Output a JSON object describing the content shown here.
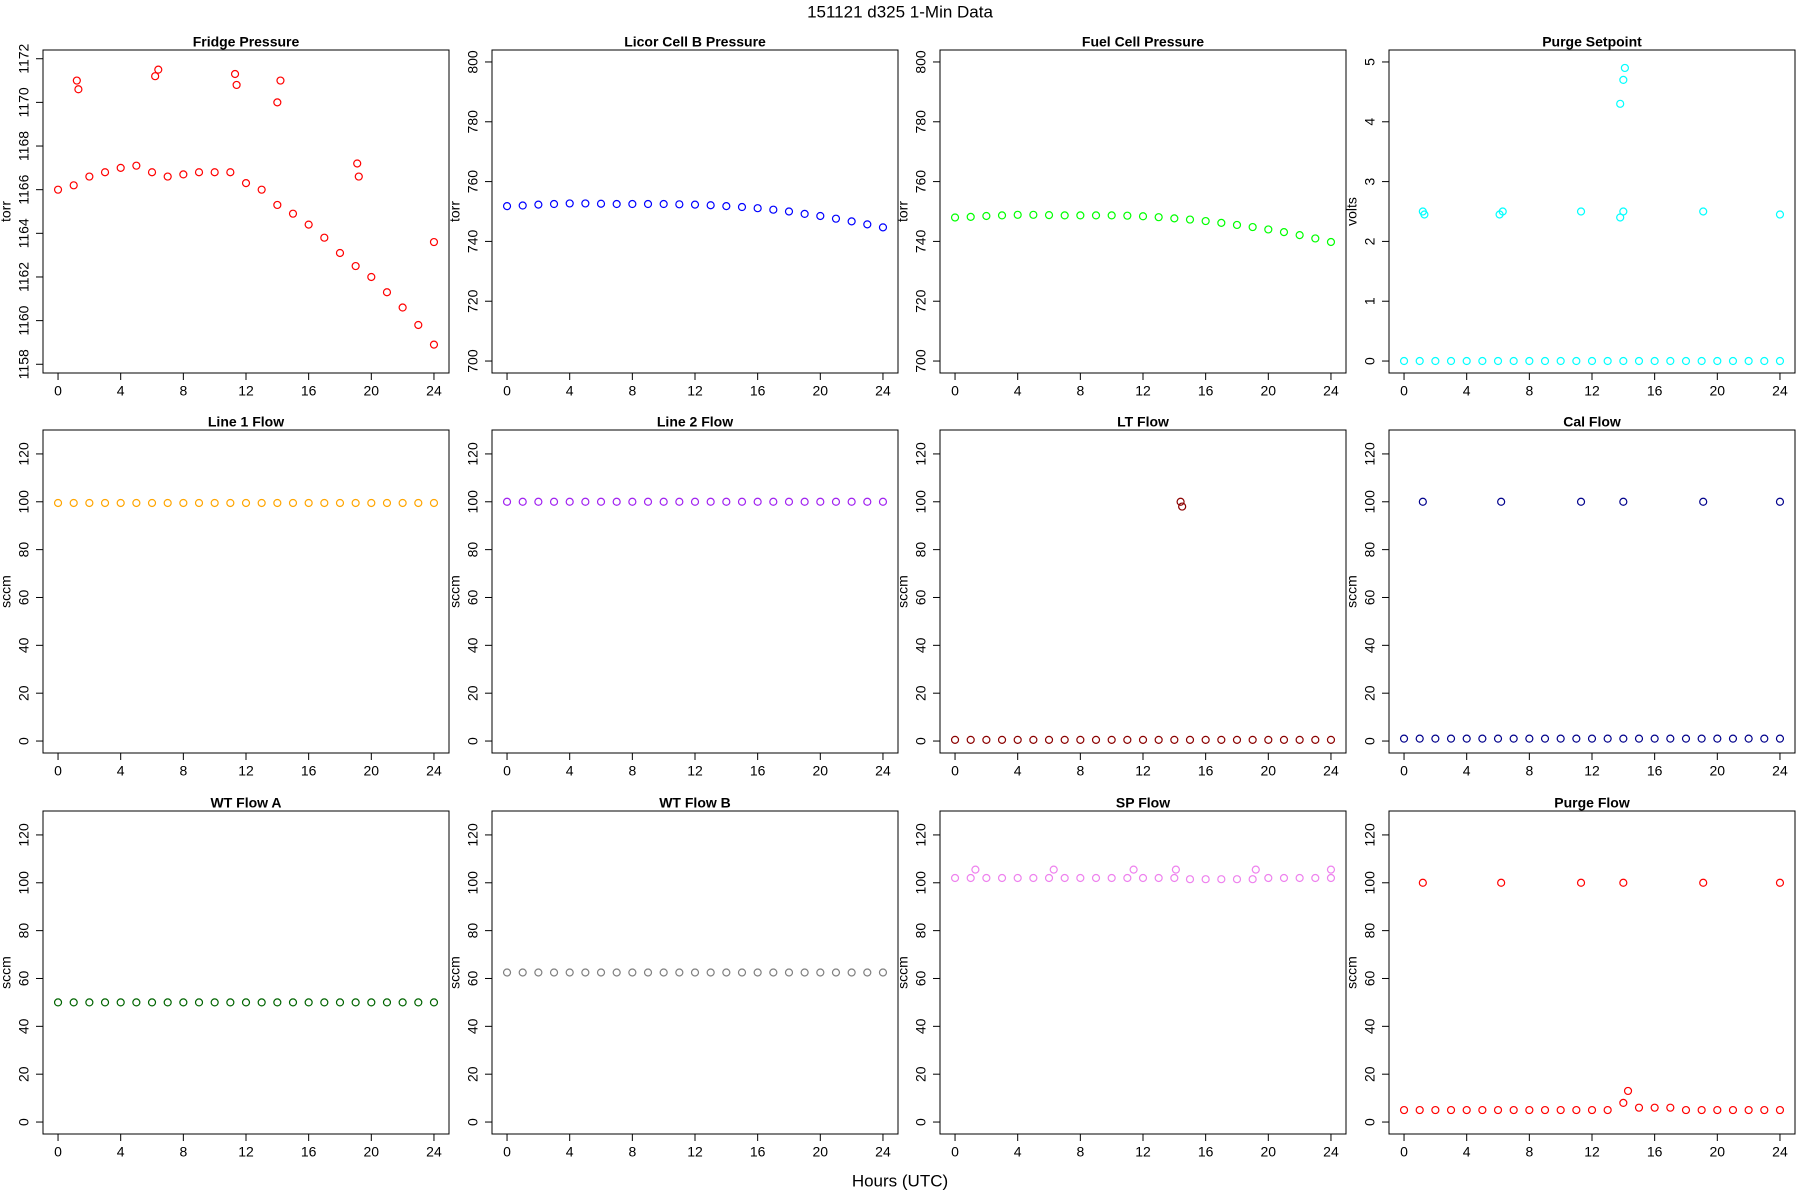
{
  "title": "151121   d325   1-Min Data",
  "x_label": "Hours (UTC)",
  "chart_data": [
    {
      "type": "scatter",
      "title": "Fridge Pressure",
      "ylabel": "torr",
      "color": "#ff0000",
      "x": [
        0,
        1,
        2,
        3,
        4,
        5,
        6,
        7,
        8,
        9,
        10,
        11,
        12,
        13,
        14,
        15,
        16,
        17,
        18,
        19,
        20,
        21,
        22,
        23,
        24,
        1.2,
        1.3,
        6.2,
        6.4,
        11.3,
        11.4,
        14,
        14.2,
        19.1,
        19.2,
        24
      ],
      "values": [
        1166,
        1166.2,
        1166.6,
        1166.8,
        1167,
        1167.1,
        1166.8,
        1166.6,
        1166.7,
        1166.8,
        1166.8,
        1166.8,
        1166.3,
        1166,
        1165.3,
        1164.9,
        1164.4,
        1163.8,
        1163.1,
        1162.5,
        1162,
        1161.3,
        1160.6,
        1159.8,
        1158.9,
        1171,
        1170.6,
        1171.2,
        1171.5,
        1171.3,
        1170.8,
        1170,
        1171,
        1167.2,
        1166.6,
        1163.6
      ],
      "xlim": [
        -0.96,
        24.96
      ],
      "xticks": [
        0,
        4,
        8,
        12,
        16,
        20,
        24
      ],
      "ylim": [
        1157.6,
        1172.4
      ],
      "yticks": [
        1158,
        1160,
        1162,
        1164,
        1166,
        1168,
        1170,
        1172
      ]
    },
    {
      "type": "scatter",
      "title": "Licor Cell B Pressure",
      "ylabel": "torr",
      "color": "#0000ff",
      "x": [
        0,
        1,
        2,
        3,
        4,
        5,
        6,
        7,
        8,
        9,
        10,
        11,
        12,
        13,
        14,
        15,
        16,
        17,
        18,
        19,
        20,
        21,
        22,
        23,
        24
      ],
      "values": [
        751.8,
        752,
        752.3,
        752.5,
        752.7,
        752.7,
        752.6,
        752.5,
        752.5,
        752.5,
        752.5,
        752.4,
        752.3,
        752.1,
        751.8,
        751.5,
        751.1,
        750.6,
        750,
        749.2,
        748.5,
        747.6,
        746.7,
        745.7,
        744.7
      ],
      "xlim": [
        -0.96,
        24.96
      ],
      "xticks": [
        0,
        4,
        8,
        12,
        16,
        20,
        24
      ],
      "ylim": [
        696,
        804
      ],
      "yticks": [
        700,
        720,
        740,
        760,
        780,
        800
      ]
    },
    {
      "type": "scatter",
      "title": "Fuel Cell Pressure",
      "ylabel": "torr",
      "color": "#00ff00",
      "x": [
        0,
        1,
        2,
        3,
        4,
        5,
        6,
        7,
        8,
        9,
        10,
        11,
        12,
        13,
        14,
        15,
        16,
        17,
        18,
        19,
        20,
        21,
        22,
        23,
        24
      ],
      "values": [
        748,
        748.2,
        748.5,
        748.7,
        748.9,
        748.9,
        748.8,
        748.7,
        748.7,
        748.7,
        748.7,
        748.6,
        748.4,
        748.1,
        747.7,
        747.3,
        746.8,
        746.2,
        745.5,
        744.8,
        744,
        743.1,
        742.1,
        741,
        739.8
      ],
      "xlim": [
        -0.96,
        24.96
      ],
      "xticks": [
        0,
        4,
        8,
        12,
        16,
        20,
        24
      ],
      "ylim": [
        696,
        804
      ],
      "yticks": [
        700,
        720,
        740,
        760,
        780,
        800
      ]
    },
    {
      "type": "scatter",
      "title": "Purge Setpoint",
      "ylabel": "volts",
      "color": "#00ffff",
      "x": [
        0,
        1,
        2,
        3,
        4,
        5,
        6,
        7,
        8,
        9,
        10,
        11,
        12,
        13,
        14,
        15,
        16,
        17,
        18,
        19,
        20,
        21,
        22,
        23,
        24,
        1.2,
        1.3,
        6.1,
        6.3,
        11.3,
        13.8,
        14,
        13.8,
        14,
        14.1,
        19.1,
        24
      ],
      "values": [
        0,
        0,
        0,
        0,
        0,
        0,
        0,
        0,
        0,
        0,
        0,
        0,
        0,
        0,
        0,
        0,
        0,
        0,
        0,
        0,
        0,
        0,
        0,
        0,
        0,
        2.5,
        2.45,
        2.45,
        2.5,
        2.5,
        2.4,
        2.5,
        4.3,
        4.7,
        4.9,
        2.5,
        2.45
      ],
      "xlim": [
        -0.96,
        24.96
      ],
      "xticks": [
        0,
        4,
        8,
        12,
        16,
        20,
        24
      ],
      "ylim": [
        -0.2,
        5.2
      ],
      "yticks": [
        0,
        1,
        2,
        3,
        4,
        5
      ]
    },
    {
      "type": "scatter",
      "title": "Line 1 Flow",
      "ylabel": "sccm",
      "color": "#ffa500",
      "x": [
        0,
        1,
        2,
        3,
        4,
        5,
        6,
        7,
        8,
        9,
        10,
        11,
        12,
        13,
        14,
        15,
        16,
        17,
        18,
        19,
        20,
        21,
        22,
        23,
        24
      ],
      "values": [
        99.5,
        99.5,
        99.5,
        99.5,
        99.5,
        99.5,
        99.5,
        99.5,
        99.5,
        99.5,
        99.5,
        99.5,
        99.5,
        99.5,
        99.5,
        99.5,
        99.5,
        99.5,
        99.5,
        99.5,
        99.5,
        99.5,
        99.5,
        99.5,
        99.5
      ],
      "xlim": [
        -0.96,
        24.96
      ],
      "xticks": [
        0,
        4,
        8,
        12,
        16,
        20,
        24
      ],
      "ylim": [
        -5,
        130
      ],
      "yticks": [
        0,
        20,
        40,
        60,
        80,
        100,
        120
      ]
    },
    {
      "type": "scatter",
      "title": "Line 2 Flow",
      "ylabel": "sccm",
      "color": "#a020f0",
      "x": [
        0,
        1,
        2,
        3,
        4,
        5,
        6,
        7,
        8,
        9,
        10,
        11,
        12,
        13,
        14,
        15,
        16,
        17,
        18,
        19,
        20,
        21,
        22,
        23,
        24
      ],
      "values": [
        100,
        100,
        100,
        100,
        100,
        100,
        100,
        100,
        100,
        100,
        100,
        100,
        100,
        100,
        100,
        100,
        100,
        100,
        100,
        100,
        100,
        100,
        100,
        100,
        100
      ],
      "xlim": [
        -0.96,
        24.96
      ],
      "xticks": [
        0,
        4,
        8,
        12,
        16,
        20,
        24
      ],
      "ylim": [
        -5,
        130
      ],
      "yticks": [
        0,
        20,
        40,
        60,
        80,
        100,
        120
      ]
    },
    {
      "type": "scatter",
      "title": "LT Flow",
      "ylabel": "sccm",
      "color": "#8b0000",
      "x": [
        0,
        1,
        2,
        3,
        4,
        5,
        6,
        7,
        8,
        9,
        10,
        11,
        12,
        13,
        14,
        15,
        16,
        17,
        18,
        19,
        20,
        21,
        22,
        23,
        24,
        14.4,
        14.5
      ],
      "values": [
        0.5,
        0.5,
        0.5,
        0.5,
        0.5,
        0.5,
        0.5,
        0.5,
        0.5,
        0.5,
        0.5,
        0.5,
        0.5,
        0.5,
        0.5,
        0.5,
        0.5,
        0.5,
        0.5,
        0.5,
        0.5,
        0.5,
        0.5,
        0.5,
        0.5,
        100,
        98
      ],
      "xlim": [
        -0.96,
        24.96
      ],
      "xticks": [
        0,
        4,
        8,
        12,
        16,
        20,
        24
      ],
      "ylim": [
        -5,
        130
      ],
      "yticks": [
        0,
        20,
        40,
        60,
        80,
        100,
        120
      ]
    },
    {
      "type": "scatter",
      "title": "Cal Flow",
      "ylabel": "sccm",
      "color": "#00008b",
      "x": [
        0,
        1,
        2,
        3,
        4,
        5,
        6,
        7,
        8,
        9,
        10,
        11,
        12,
        13,
        14,
        15,
        16,
        17,
        18,
        19,
        20,
        21,
        22,
        23,
        24,
        1.2,
        6.2,
        11.3,
        14,
        19.1,
        24
      ],
      "values": [
        1,
        1,
        1,
        1,
        1,
        1,
        1,
        1,
        1,
        1,
        1,
        1,
        1,
        1,
        1,
        1,
        1,
        1,
        1,
        1,
        1,
        1,
        1,
        1,
        1,
        100,
        100,
        100,
        100,
        100,
        100
      ],
      "xlim": [
        -0.96,
        24.96
      ],
      "xticks": [
        0,
        4,
        8,
        12,
        16,
        20,
        24
      ],
      "ylim": [
        -5,
        130
      ],
      "yticks": [
        0,
        20,
        40,
        60,
        80,
        100,
        120
      ]
    },
    {
      "type": "scatter",
      "title": "WT Flow A",
      "ylabel": "sccm",
      "color": "#006400",
      "x": [
        0,
        1,
        2,
        3,
        4,
        5,
        6,
        7,
        8,
        9,
        10,
        11,
        12,
        13,
        14,
        15,
        16,
        17,
        18,
        19,
        20,
        21,
        22,
        23,
        24
      ],
      "values": [
        50,
        50,
        50,
        50,
        50,
        50,
        50,
        50,
        50,
        50,
        50,
        50,
        50,
        50,
        50,
        50,
        50,
        50,
        50,
        50,
        50,
        50,
        50,
        50,
        50
      ],
      "xlim": [
        -0.96,
        24.96
      ],
      "xticks": [
        0,
        4,
        8,
        12,
        16,
        20,
        24
      ],
      "ylim": [
        -5,
        130
      ],
      "yticks": [
        0,
        20,
        40,
        60,
        80,
        100,
        120
      ]
    },
    {
      "type": "scatter",
      "title": "WT Flow B",
      "ylabel": "sccm",
      "color": "#808080",
      "x": [
        0,
        1,
        2,
        3,
        4,
        5,
        6,
        7,
        8,
        9,
        10,
        11,
        12,
        13,
        14,
        15,
        16,
        17,
        18,
        19,
        20,
        21,
        22,
        23,
        24
      ],
      "values": [
        62.5,
        62.5,
        62.5,
        62.5,
        62.5,
        62.5,
        62.5,
        62.5,
        62.5,
        62.5,
        62.5,
        62.5,
        62.5,
        62.5,
        62.5,
        62.5,
        62.5,
        62.5,
        62.5,
        62.5,
        62.5,
        62.5,
        62.5,
        62.5,
        62.5
      ],
      "xlim": [
        -0.96,
        24.96
      ],
      "xticks": [
        0,
        4,
        8,
        12,
        16,
        20,
        24
      ],
      "ylim": [
        -5,
        130
      ],
      "yticks": [
        0,
        20,
        40,
        60,
        80,
        100,
        120
      ]
    },
    {
      "type": "scatter",
      "title": "SP Flow",
      "ylabel": "sccm",
      "color": "#ee82ee",
      "x": [
        0,
        1,
        2,
        3,
        4,
        5,
        6,
        7,
        8,
        9,
        10,
        11,
        12,
        13,
        14,
        15,
        16,
        17,
        18,
        19,
        20,
        21,
        22,
        23,
        24,
        1.3,
        6.3,
        11.4,
        14.1,
        19.2,
        24
      ],
      "values": [
        102,
        102,
        102,
        102,
        102,
        102,
        102,
        102,
        102,
        102,
        102,
        102,
        102,
        102,
        102,
        101.5,
        101.5,
        101.5,
        101.5,
        101.5,
        102,
        102,
        102,
        102,
        102,
        105.5,
        105.5,
        105.5,
        105.5,
        105.5,
        105.5
      ],
      "xlim": [
        -0.96,
        24.96
      ],
      "xticks": [
        0,
        4,
        8,
        12,
        16,
        20,
        24
      ],
      "ylim": [
        -5,
        130
      ],
      "yticks": [
        0,
        20,
        40,
        60,
        80,
        100,
        120
      ]
    },
    {
      "type": "scatter",
      "title": "Purge Flow",
      "ylabel": "sccm",
      "color": "#ff0000",
      "x": [
        0,
        1,
        2,
        3,
        4,
        5,
        6,
        7,
        8,
        9,
        10,
        11,
        12,
        13,
        14,
        15,
        16,
        17,
        18,
        19,
        20,
        21,
        22,
        23,
        24,
        1.2,
        6.2,
        11.3,
        14,
        19.1,
        24,
        14.3
      ],
      "values": [
        5,
        5,
        5,
        5,
        5,
        5,
        5,
        5,
        5,
        5,
        5,
        5,
        5,
        5,
        8,
        6,
        6,
        6,
        5,
        5,
        5,
        5,
        5,
        5,
        5,
        100,
        100,
        100,
        100,
        100,
        100,
        13
      ],
      "xlim": [
        -0.96,
        24.96
      ],
      "xticks": [
        0,
        4,
        8,
        12,
        16,
        20,
        24
      ],
      "ylim": [
        -5,
        130
      ],
      "yticks": [
        0,
        20,
        40,
        60,
        80,
        100,
        120
      ]
    }
  ]
}
